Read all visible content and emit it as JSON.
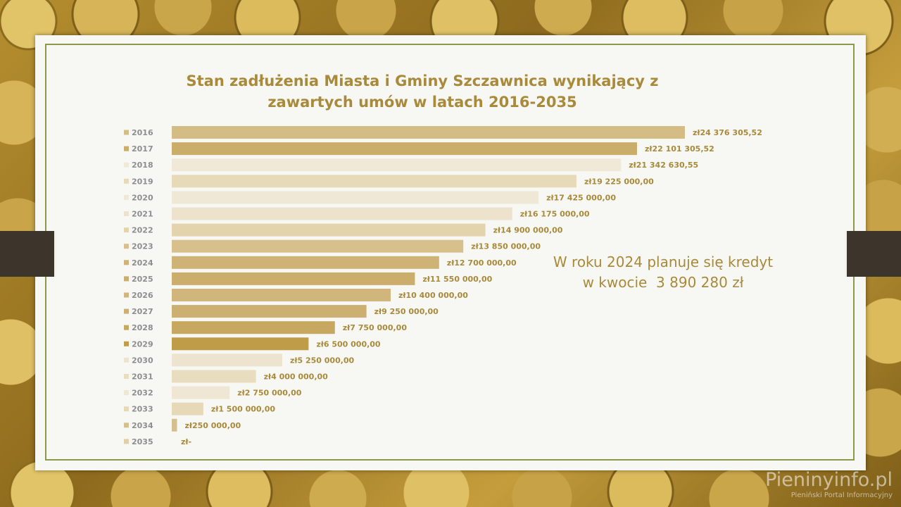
{
  "title": {
    "line1": "Stan zadłużenia Miasta i Gminy Szczawnica wynikający z",
    "line2": "zawartych umów w latach 2016-2035"
  },
  "note": {
    "line1": "W roku 2024 planuje się kredyt",
    "line2": "w kwocie  3 890 280 zł"
  },
  "watermark": {
    "name": "Pieninyinfo.pl",
    "subtitle": "Pieniński Portal Informacyjny"
  },
  "chart_data": {
    "type": "bar",
    "orientation": "horizontal",
    "categories": [
      "2016",
      "2017",
      "2018",
      "2019",
      "2020",
      "2021",
      "2022",
      "2023",
      "2024",
      "2025",
      "2026",
      "2027",
      "2028",
      "2029",
      "2030",
      "2031",
      "2032",
      "2033",
      "2034",
      "2035"
    ],
    "values": [
      24376305.52,
      22101305.52,
      21342630.55,
      19225000,
      17425000,
      16175000,
      14900000,
      13850000,
      12700000,
      11550000,
      10400000,
      9250000,
      7750000,
      6500000,
      5250000,
      4000000,
      2750000,
      1500000,
      250000,
      0
    ],
    "value_labels": [
      "zł24 376 305,52",
      "zł22 101 305,52",
      "zł21 342 630,55",
      "zł19 225 000,00",
      "zł17 425 000,00",
      "zł16 175 000,00",
      "zł14 900 000,00",
      "zł13 850 000,00",
      "zł12 700 000,00",
      "zł11 550 000,00",
      "zł10 400 000,00",
      "zł9 250 000,00",
      "zł7 750 000,00",
      "zł6 500 000,00",
      "zł5 250 000,00",
      "zł4 000 000,00",
      "zł2 750 000,00",
      "zł1 500 000,00",
      "zł250 000,00",
      "zł-"
    ],
    "colors": [
      "#d4bc85",
      "#c9ad68",
      "#f1e9d7",
      "#e7dab9",
      "#f0e8d6",
      "#ede3cc",
      "#e3d4ad",
      "#d8c08c",
      "#cfb276",
      "#cbad6c",
      "#d0b67d",
      "#cbb072",
      "#c6a860",
      "#be9c48",
      "#ede4cf",
      "#e9ddc0",
      "#efe6d3",
      "#e6d9b8",
      "#d6bf8e",
      "#e1cfa6"
    ],
    "title": "Stan zadłużenia Miasta i Gminy Szczawnica wynikający z zawartych umów w latach 2016-2035",
    "xlim": [
      0,
      24376305.52
    ],
    "grid": false,
    "legend": "left"
  }
}
